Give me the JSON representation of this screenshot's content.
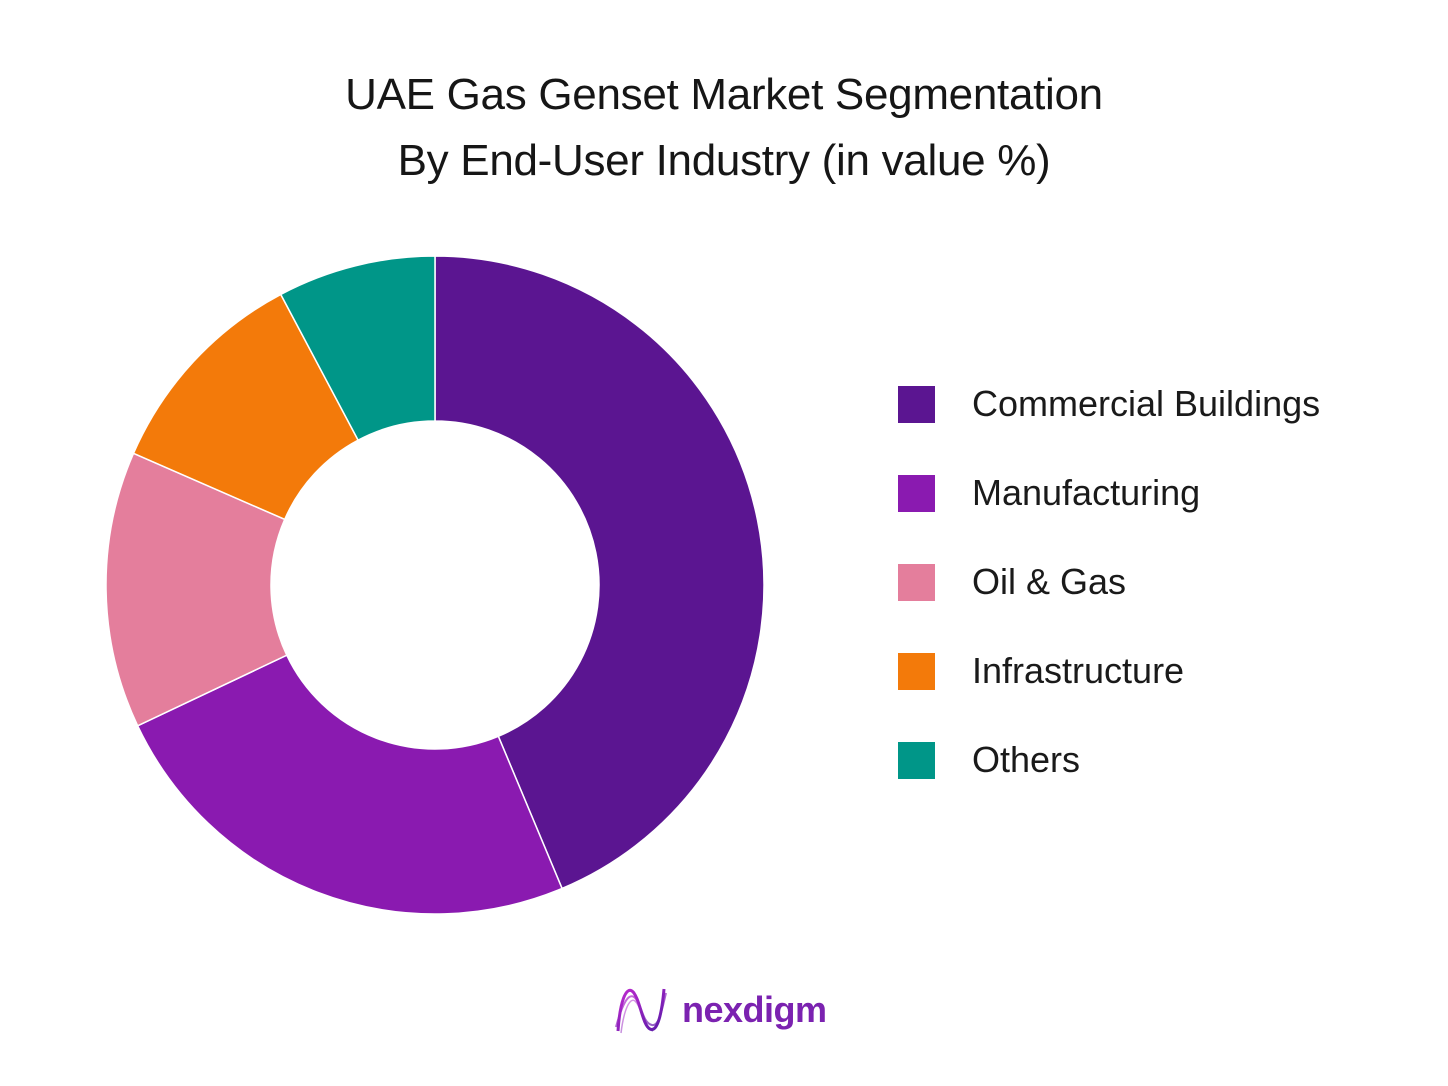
{
  "chart_data": {
    "type": "pie",
    "title": "UAE Gas Genset Market Segmentation",
    "subtitle": "By End-User Industry (in value %)",
    "donut": true,
    "legend_position": "right",
    "categories": [
      "Commercial Buildings",
      "Manufacturing",
      "Oil & Gas",
      "Infrastructure",
      "Others"
    ],
    "values": [
      45,
      25,
      14,
      11,
      8
    ],
    "colors": [
      "#5b1591",
      "#8a1ab0",
      "#e47e9c",
      "#f37a0a",
      "#009688"
    ]
  },
  "brand": {
    "name": "nexdigm",
    "logo_icon": "nexdigm-logo-icon",
    "color": "#7b22b0"
  }
}
